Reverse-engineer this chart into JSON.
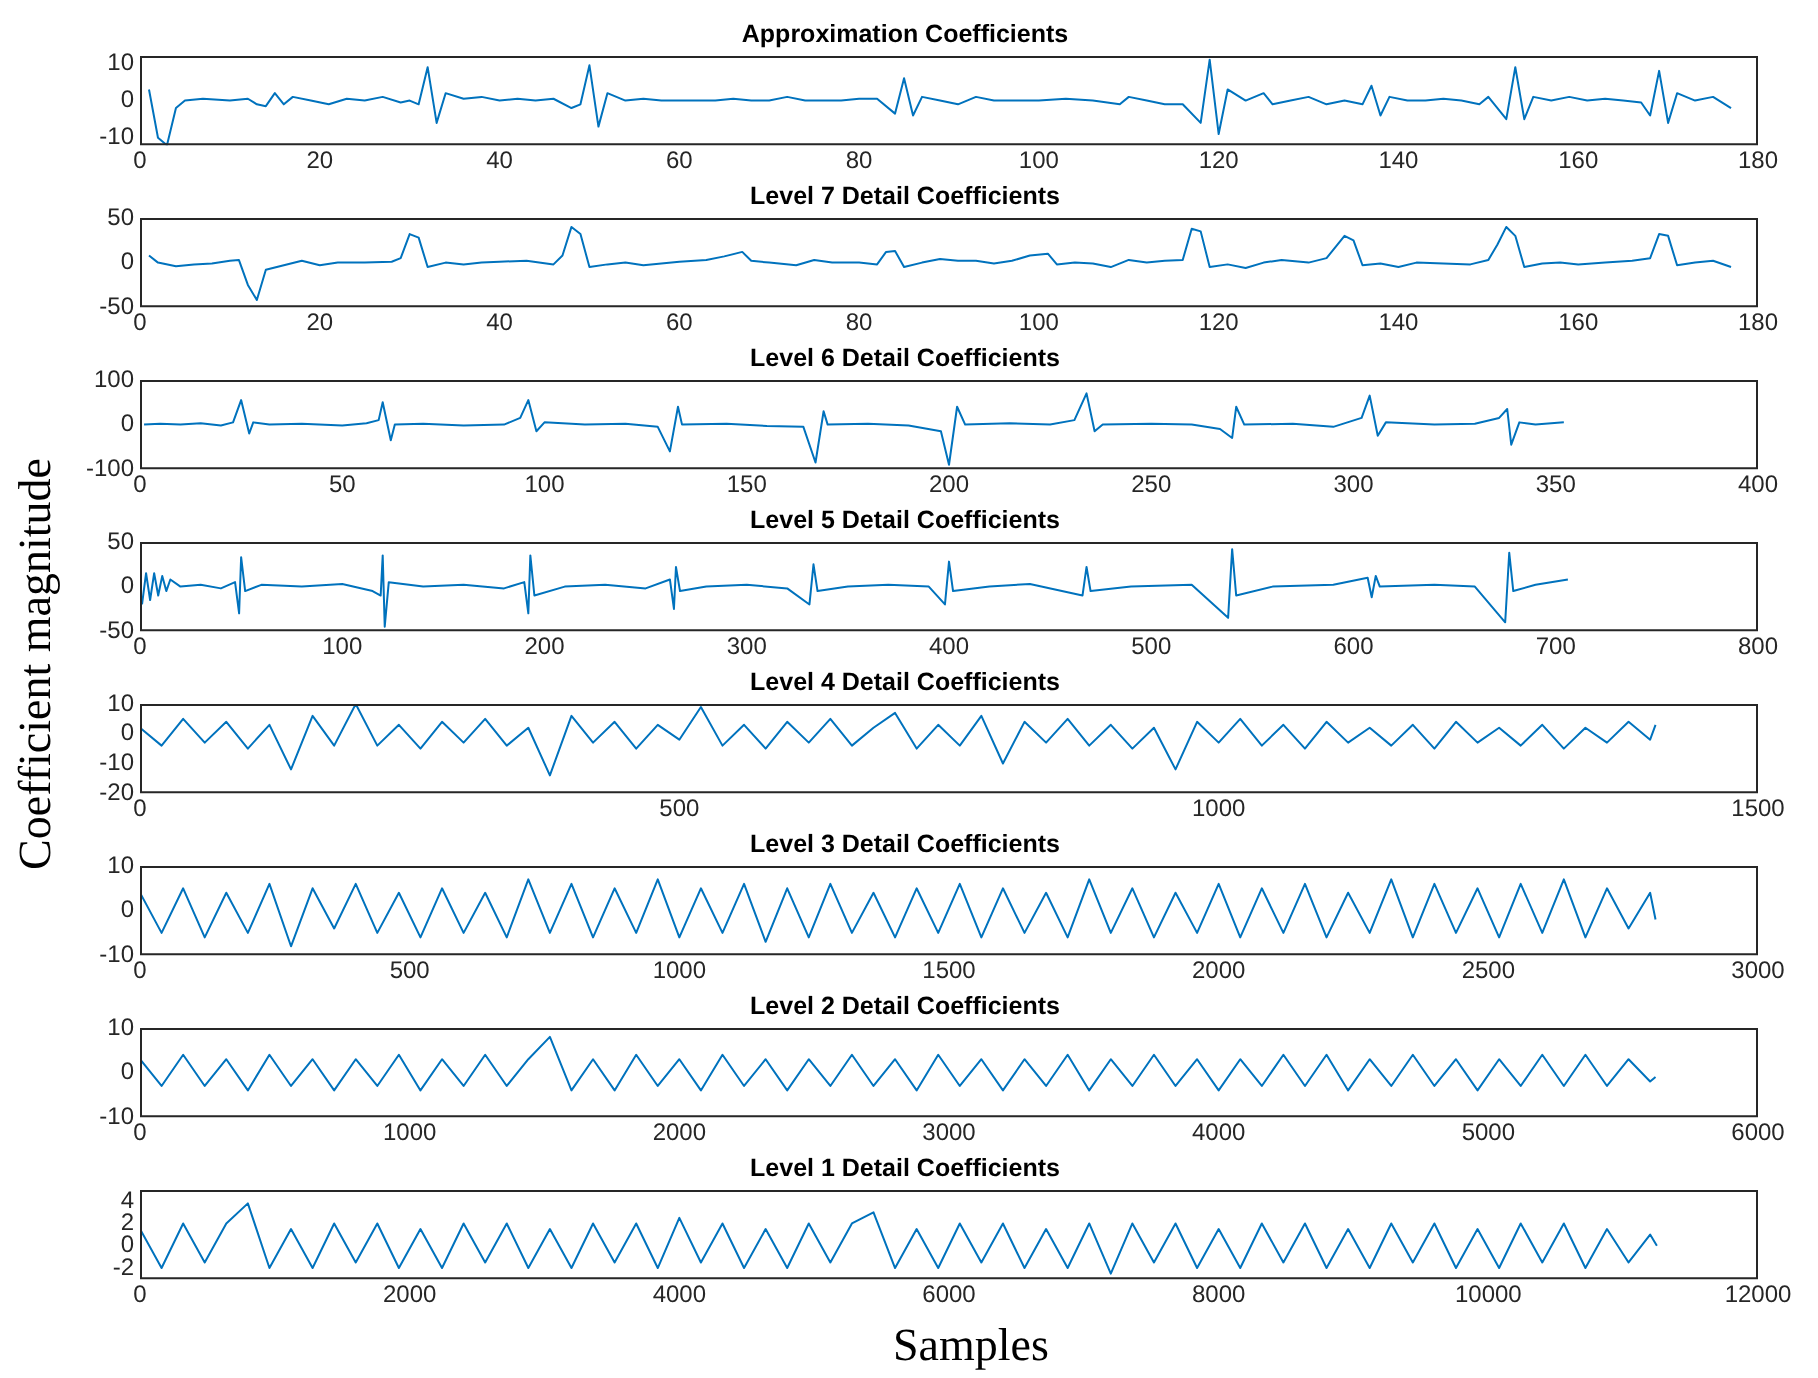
{
  "chart_data": [
    {
      "type": "line",
      "title": "Approximation Coefficients",
      "color": "#0072bd",
      "marker": "none",
      "xlim": [
        0,
        180
      ],
      "xticks": [
        0,
        20,
        40,
        60,
        80,
        100,
        120,
        140,
        160,
        180
      ],
      "ylim": [
        -12,
        12
      ],
      "yticks": [
        -10,
        0,
        10
      ],
      "x": [
        1,
        2,
        3,
        4,
        5,
        7,
        10,
        12,
        13,
        14,
        15,
        16,
        17,
        19,
        21,
        23,
        25,
        27,
        29,
        30,
        31,
        32,
        33,
        34,
        36,
        38,
        40,
        42,
        44,
        46,
        48,
        49,
        50,
        51,
        52,
        54,
        56,
        58,
        60,
        62,
        64,
        66,
        68,
        70,
        72,
        74,
        76,
        78,
        80,
        82,
        84,
        85,
        86,
        87,
        89,
        91,
        93,
        95,
        97,
        100,
        103,
        106,
        109,
        110,
        112,
        114,
        116,
        118,
        119,
        120,
        121,
        123,
        125,
        126,
        128,
        130,
        132,
        134,
        136,
        137,
        138,
        139,
        141,
        143,
        145,
        147,
        149,
        150,
        152,
        153,
        154,
        155,
        157,
        159,
        161,
        163,
        165,
        167,
        168,
        169,
        170,
        171,
        173,
        175,
        177
      ],
      "values": [
        3,
        -10,
        -12,
        -2,
        0,
        0.5,
        0,
        0.5,
        -1,
        -1.5,
        2,
        -1,
        1,
        0,
        -1,
        0.5,
        0,
        1,
        -0.5,
        0,
        -1,
        9,
        -6,
        2,
        0.5,
        1,
        0,
        0.5,
        0,
        0.5,
        -2,
        -1,
        9.5,
        -7,
        2,
        0,
        0.5,
        0,
        0,
        0,
        0,
        0.5,
        0,
        0,
        1,
        0,
        0,
        0,
        0.5,
        0.5,
        -3.5,
        6,
        -4,
        1,
        0,
        -1,
        1,
        0,
        0,
        0,
        0.5,
        0,
        -1,
        1,
        0,
        -1,
        -1,
        -6,
        11,
        -9,
        3,
        0,
        2,
        -1,
        0,
        1,
        -1,
        0,
        -1,
        4,
        -4,
        1,
        0,
        0,
        0.5,
        0,
        -1,
        1,
        -5,
        9,
        -5,
        1,
        0,
        1,
        0,
        0.5,
        0,
        -0.5,
        -4,
        8,
        -6,
        2,
        0,
        1,
        -2
      ]
    },
    {
      "type": "line",
      "title": "Level 7 Detail Coefficients",
      "color": "#0072bd",
      "marker": "none",
      "xlim": [
        0,
        180
      ],
      "xticks": [
        0,
        20,
        40,
        60,
        80,
        100,
        120,
        140,
        160,
        180
      ],
      "ylim": [
        -50,
        50
      ],
      "yticks": [
        -50,
        0,
        50
      ],
      "x": [
        1,
        2,
        4,
        6,
        8,
        10,
        11,
        12,
        13,
        14,
        16,
        18,
        20,
        22,
        25,
        28,
        29,
        30,
        31,
        32,
        34,
        36,
        38,
        40,
        43,
        46,
        47,
        48,
        49,
        50,
        52,
        54,
        56,
        58,
        60,
        63,
        65,
        67,
        68,
        70,
        73,
        75,
        77,
        80,
        82,
        83,
        84,
        85,
        87,
        89,
        91,
        93,
        95,
        97,
        99,
        101,
        102,
        104,
        106,
        108,
        110,
        112,
        114,
        116,
        117,
        118,
        119,
        121,
        123,
        125,
        127,
        130,
        132,
        134,
        135,
        136,
        138,
        140,
        142,
        145,
        148,
        150,
        151,
        152,
        153,
        154,
        156,
        158,
        160,
        163,
        166,
        168,
        169,
        170,
        171,
        173,
        175,
        177
      ],
      "values": [
        8,
        0,
        -4,
        -2,
        -1,
        2,
        3,
        -25,
        -42,
        -8,
        -3,
        2,
        -3,
        0,
        0,
        1,
        5,
        32,
        28,
        -5,
        0,
        -2,
        0,
        1,
        2,
        -2,
        8,
        40,
        32,
        -5,
        -2,
        0,
        -3,
        -1,
        1,
        3,
        7,
        12,
        2,
        0,
        -3,
        3,
        0,
        0,
        -2,
        12,
        13,
        -5,
        0,
        4,
        2,
        2,
        -1,
        2,
        8,
        10,
        -2,
        0,
        -1,
        -5,
        3,
        0,
        2,
        3,
        38,
        35,
        -5,
        -2,
        -6,
        0,
        3,
        0,
        5,
        30,
        25,
        -3,
        -1,
        -5,
        0,
        -1,
        -2,
        3,
        20,
        40,
        30,
        -5,
        -1,
        0,
        -2,
        0,
        2,
        5,
        32,
        30,
        -3,
        0,
        2,
        -5
      ]
    },
    {
      "type": "line",
      "title": "Level 6 Detail Coefficients",
      "color": "#0072bd",
      "marker": "none",
      "xlim": [
        0,
        400
      ],
      "xticks": [
        0,
        50,
        100,
        150,
        200,
        250,
        300,
        350,
        400
      ],
      "ylim": [
        -100,
        100
      ],
      "yticks": [
        -100,
        0,
        100
      ],
      "x": [
        1,
        5,
        10,
        15,
        20,
        23,
        25,
        27,
        28,
        32,
        40,
        50,
        56,
        59,
        60,
        62,
        63,
        70,
        80,
        90,
        94,
        96,
        98,
        100,
        110,
        120,
        128,
        131,
        133,
        134,
        145,
        155,
        164,
        167,
        169,
        170,
        180,
        190,
        198,
        200,
        202,
        204,
        215,
        225,
        231,
        234,
        236,
        238,
        250,
        260,
        267,
        270,
        271,
        273,
        285,
        295,
        302,
        304,
        306,
        308,
        320,
        330,
        336,
        338,
        339,
        341,
        345,
        352
      ],
      "values": [
        0,
        2,
        0,
        3,
        -2,
        5,
        55,
        -20,
        5,
        0,
        2,
        -2,
        3,
        10,
        50,
        -35,
        0,
        2,
        -2,
        0,
        15,
        55,
        -15,
        5,
        0,
        2,
        -5,
        -60,
        40,
        0,
        2,
        -3,
        -5,
        -85,
        30,
        0,
        2,
        -2,
        -15,
        -90,
        40,
        0,
        3,
        0,
        10,
        70,
        -15,
        0,
        2,
        0,
        -10,
        -30,
        40,
        0,
        2,
        -5,
        15,
        65,
        -25,
        5,
        0,
        2,
        15,
        35,
        -45,
        5,
        0,
        5
      ]
    },
    {
      "type": "line",
      "title": "Level 5 Detail Coefficients",
      "color": "#0072bd",
      "marker": "none",
      "xlim": [
        0,
        800
      ],
      "xticks": [
        0,
        100,
        200,
        300,
        400,
        500,
        600,
        700,
        800
      ],
      "ylim": [
        -50,
        50
      ],
      "yticks": [
        -50,
        0,
        50
      ],
      "x": [
        1,
        3,
        5,
        7,
        9,
        11,
        13,
        15,
        20,
        30,
        40,
        47,
        49,
        50,
        52,
        60,
        80,
        100,
        115,
        119,
        120,
        121,
        123,
        140,
        160,
        180,
        190,
        192,
        193,
        195,
        210,
        230,
        250,
        262,
        264,
        265,
        267,
        280,
        300,
        320,
        331,
        333,
        335,
        350,
        370,
        390,
        398,
        400,
        402,
        420,
        440,
        466,
        468,
        470,
        490,
        520,
        538,
        540,
        542,
        560,
        590,
        607,
        609,
        611,
        613,
        640,
        660,
        675,
        677,
        679,
        690,
        706
      ],
      "values": [
        -20,
        15,
        -15,
        15,
        -10,
        12,
        -5,
        8,
        0,
        2,
        -2,
        5,
        -30,
        33,
        -5,
        2,
        0,
        3,
        -5,
        -10,
        35,
        -45,
        5,
        0,
        2,
        -2,
        5,
        -30,
        35,
        -10,
        0,
        2,
        -2,
        8,
        -25,
        22,
        -5,
        0,
        2,
        -2,
        -20,
        25,
        -5,
        0,
        2,
        0,
        -20,
        28,
        -5,
        0,
        3,
        -10,
        22,
        -5,
        0,
        2,
        -35,
        42,
        -10,
        0,
        2,
        10,
        -12,
        12,
        0,
        2,
        0,
        -40,
        38,
        -5,
        2,
        8
      ]
    },
    {
      "type": "line",
      "title": "Level 4 Detail Coefficients",
      "ylabel": "Coefficient magnitude",
      "color": "#0072bd",
      "marker": "none",
      "xlim": [
        0,
        1500
      ],
      "xticks": [
        0,
        500,
        1000,
        1500
      ],
      "ylim": [
        -20,
        10
      ],
      "yticks": [
        -20,
        -10,
        0,
        10
      ],
      "x": [
        0,
        20,
        40,
        60,
        80,
        100,
        120,
        140,
        160,
        180,
        200,
        220,
        240,
        260,
        280,
        300,
        320,
        340,
        360,
        380,
        400,
        420,
        440,
        460,
        480,
        500,
        520,
        540,
        560,
        580,
        600,
        620,
        640,
        660,
        680,
        700,
        720,
        740,
        760,
        780,
        800,
        820,
        840,
        860,
        880,
        900,
        920,
        940,
        960,
        980,
        1000,
        1020,
        1040,
        1060,
        1080,
        1100,
        1120,
        1140,
        1160,
        1180,
        1200,
        1220,
        1240,
        1260,
        1280,
        1300,
        1320,
        1340,
        1360,
        1380,
        1400,
        1405
      ],
      "values": [
        2,
        -4,
        5,
        -3,
        4,
        -5,
        3,
        -12,
        6,
        -4,
        10,
        -4,
        3,
        -5,
        4,
        -3,
        5,
        -4,
        2,
        -14,
        6,
        -3,
        4,
        -5,
        3,
        -2,
        9,
        -4,
        3,
        -5,
        4,
        -3,
        5,
        -4,
        2,
        7,
        -5,
        3,
        -4,
        6,
        -10,
        4,
        -3,
        5,
        -4,
        3,
        -5,
        2,
        -12,
        4,
        -3,
        5,
        -4,
        3,
        -5,
        4,
        -3,
        2,
        -4,
        3,
        -5,
        4,
        -3,
        2,
        -4,
        3,
        -5,
        2,
        -3,
        4,
        -2,
        3
      ]
    },
    {
      "type": "line",
      "title": "Level 3 Detail Coefficients",
      "color": "#0072bd",
      "marker": "none",
      "xlim": [
        0,
        3000
      ],
      "xticks": [
        0,
        500,
        1000,
        1500,
        2000,
        2500,
        3000
      ],
      "ylim": [
        -10,
        10
      ],
      "yticks": [
        -10,
        0,
        10
      ],
      "x": [
        0,
        40,
        80,
        120,
        160,
        200,
        240,
        280,
        320,
        360,
        400,
        440,
        480,
        520,
        560,
        600,
        640,
        680,
        720,
        760,
        800,
        840,
        880,
        920,
        960,
        1000,
        1040,
        1080,
        1120,
        1160,
        1200,
        1240,
        1280,
        1320,
        1360,
        1400,
        1440,
        1480,
        1520,
        1560,
        1600,
        1640,
        1680,
        1720,
        1760,
        1800,
        1840,
        1880,
        1920,
        1960,
        2000,
        2040,
        2080,
        2120,
        2160,
        2200,
        2240,
        2280,
        2320,
        2360,
        2400,
        2440,
        2480,
        2520,
        2560,
        2600,
        2640,
        2680,
        2720,
        2760,
        2800,
        2810
      ],
      "values": [
        4,
        -5,
        5,
        -6,
        4,
        -5,
        6,
        -8,
        5,
        -4,
        6,
        -5,
        4,
        -6,
        5,
        -5,
        4,
        -6,
        7,
        -5,
        6,
        -6,
        5,
        -5,
        7,
        -6,
        5,
        -5,
        6,
        -7,
        5,
        -6,
        6,
        -5,
        4,
        -6,
        5,
        -5,
        6,
        -6,
        5,
        -5,
        4,
        -6,
        7,
        -5,
        5,
        -6,
        4,
        -5,
        6,
        -6,
        5,
        -5,
        6,
        -6,
        4,
        -5,
        7,
        -6,
        6,
        -5,
        5,
        -6,
        6,
        -5,
        7,
        -6,
        5,
        -4,
        4,
        -2
      ]
    },
    {
      "type": "line",
      "title": "Level 2 Detail Coefficients",
      "color": "#0072bd",
      "marker": "none",
      "xlim": [
        0,
        6000
      ],
      "xticks": [
        0,
        1000,
        2000,
        3000,
        4000,
        5000,
        6000
      ],
      "ylim": [
        -10,
        10
      ],
      "yticks": [
        -10,
        0,
        10
      ],
      "x": [
        0,
        80,
        160,
        240,
        320,
        400,
        480,
        560,
        640,
        720,
        800,
        880,
        960,
        1040,
        1120,
        1200,
        1280,
        1360,
        1440,
        1520,
        1600,
        1680,
        1760,
        1840,
        1920,
        2000,
        2080,
        2160,
        2240,
        2320,
        2400,
        2480,
        2560,
        2640,
        2720,
        2800,
        2880,
        2960,
        3040,
        3120,
        3200,
        3280,
        3360,
        3440,
        3520,
        3600,
        3680,
        3760,
        3840,
        3920,
        4000,
        4080,
        4160,
        4240,
        4320,
        4400,
        4480,
        4560,
        4640,
        4720,
        4800,
        4880,
        4960,
        5040,
        5120,
        5200,
        5280,
        5360,
        5440,
        5520,
        5600,
        5620
      ],
      "values": [
        3,
        -3,
        4,
        -3,
        3,
        -4,
        4,
        -3,
        3,
        -4,
        3,
        -3,
        4,
        -4,
        3,
        -3,
        4,
        -3,
        3,
        8,
        -4,
        3,
        -4,
        4,
        -3,
        3,
        -4,
        4,
        -3,
        3,
        -4,
        3,
        -3,
        4,
        -3,
        3,
        -4,
        4,
        -3,
        3,
        -4,
        3,
        -3,
        4,
        -4,
        3,
        -3,
        4,
        -3,
        3,
        -4,
        3,
        -3,
        4,
        -3,
        4,
        -4,
        3,
        -3,
        4,
        -3,
        3,
        -4,
        3,
        -3,
        4,
        -3,
        4,
        -3,
        3,
        -2,
        -1
      ]
    },
    {
      "type": "line",
      "title": "Level 1 Detail Coefficients",
      "xlabel": "Samples",
      "color": "#0072bd",
      "marker": "none",
      "xlim": [
        0,
        12000
      ],
      "xticks": [
        0,
        2000,
        4000,
        6000,
        8000,
        10000,
        12000
      ],
      "ylim": [
        -3,
        5
      ],
      "yticks": [
        -2,
        0,
        2,
        4
      ],
      "x": [
        0,
        160,
        320,
        480,
        640,
        800,
        960,
        1120,
        1280,
        1440,
        1600,
        1760,
        1920,
        2080,
        2240,
        2400,
        2560,
        2720,
        2880,
        3040,
        3200,
        3360,
        3520,
        3680,
        3840,
        4000,
        4160,
        4320,
        4480,
        4640,
        4800,
        4960,
        5120,
        5280,
        5440,
        5600,
        5760,
        5920,
        6080,
        6240,
        6400,
        6560,
        6720,
        6880,
        7040,
        7200,
        7360,
        7520,
        7680,
        7840,
        8000,
        8160,
        8320,
        8480,
        8640,
        8800,
        8960,
        9120,
        9280,
        9440,
        9600,
        9760,
        9920,
        10080,
        10240,
        10400,
        10560,
        10720,
        10880,
        11040,
        11200,
        11250
      ],
      "values": [
        1.5,
        -2,
        2,
        -1.5,
        2,
        3.8,
        -2,
        1.5,
        -2,
        2,
        -1.5,
        2,
        -2,
        1.5,
        -2,
        2,
        -1.5,
        2,
        -2,
        1.5,
        -2,
        2,
        -1.5,
        2,
        -2,
        2.5,
        -1.5,
        2,
        -2,
        1.5,
        -2,
        2,
        -1.5,
        2,
        3,
        -2,
        1.5,
        -2,
        2,
        -1.5,
        2,
        -2,
        1.5,
        -2,
        2,
        -2.5,
        2,
        -1.5,
        2,
        -2,
        1.5,
        -2,
        2,
        -1.5,
        2,
        -2,
        1.5,
        -2,
        2,
        -1.5,
        2,
        -2,
        1.5,
        -2,
        2,
        -1.5,
        2,
        -2,
        1.5,
        -1.5,
        1,
        0
      ]
    }
  ]
}
